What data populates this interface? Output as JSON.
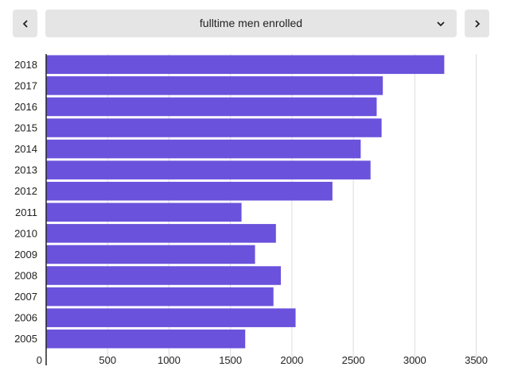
{
  "controls": {
    "selected_metric": "fulltime men enrolled",
    "prev_icon": "chevron-left-icon",
    "next_icon": "chevron-right-icon",
    "dropdown_icon": "chevron-down-icon"
  },
  "chart_data": {
    "type": "bar",
    "orientation": "horizontal",
    "categories": [
      "2018",
      "2017",
      "2016",
      "2015",
      "2014",
      "2013",
      "2012",
      "2011",
      "2010",
      "2009",
      "2008",
      "2007",
      "2006",
      "2005"
    ],
    "values": [
      3240,
      2740,
      2690,
      2730,
      2560,
      2640,
      2330,
      1590,
      1870,
      1700,
      1910,
      1850,
      2030,
      1620
    ],
    "xlim": [
      0,
      3600
    ],
    "xticks": [
      0,
      500,
      1000,
      1500,
      2000,
      2500,
      3000,
      3500
    ],
    "grid": true,
    "bar_color": "#6a52dc"
  }
}
